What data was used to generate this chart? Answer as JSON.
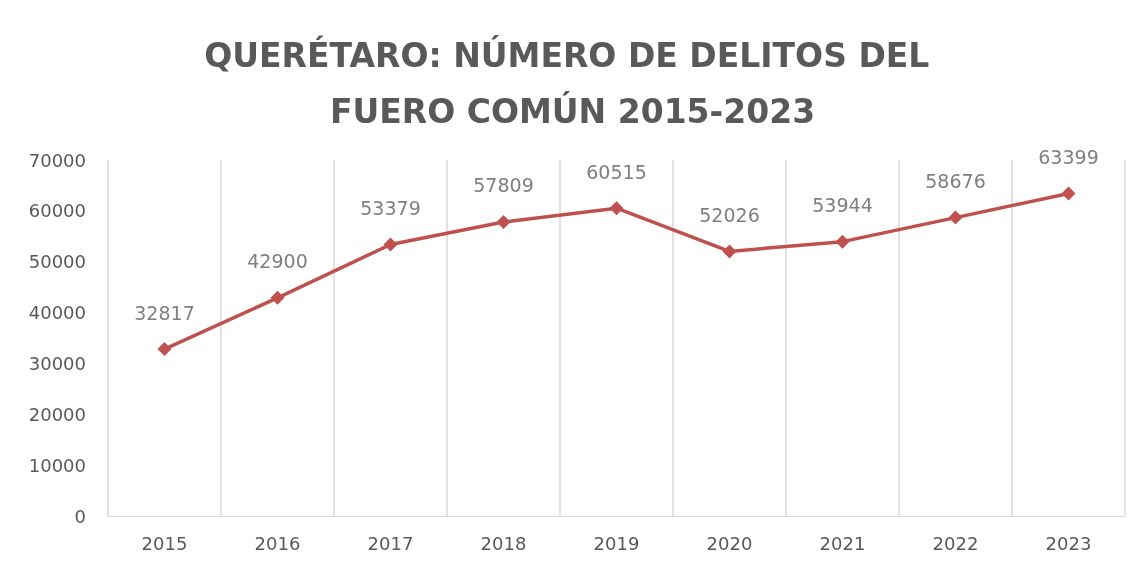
{
  "chart_data": {
    "type": "line",
    "title": "QUERÉTARO: NÚMERO DE DELITOS DEL FUERO COMÚN 2015-2023",
    "categories": [
      "2015",
      "2016",
      "2017",
      "2018",
      "2019",
      "2020",
      "2021",
      "2022",
      "2023"
    ],
    "series": [
      {
        "color": "#c0504d",
        "values": [
          32817,
          42900,
          53379,
          57809,
          60515,
          52026,
          53944,
          58676,
          63399
        ]
      }
    ],
    "ylim": [
      0,
      70000
    ],
    "yticks": [
      0,
      10000,
      20000,
      30000,
      40000,
      50000,
      60000,
      70000
    ],
    "grid": "x",
    "marker": "diamond",
    "line_style": "solid",
    "data_labels": true
  }
}
